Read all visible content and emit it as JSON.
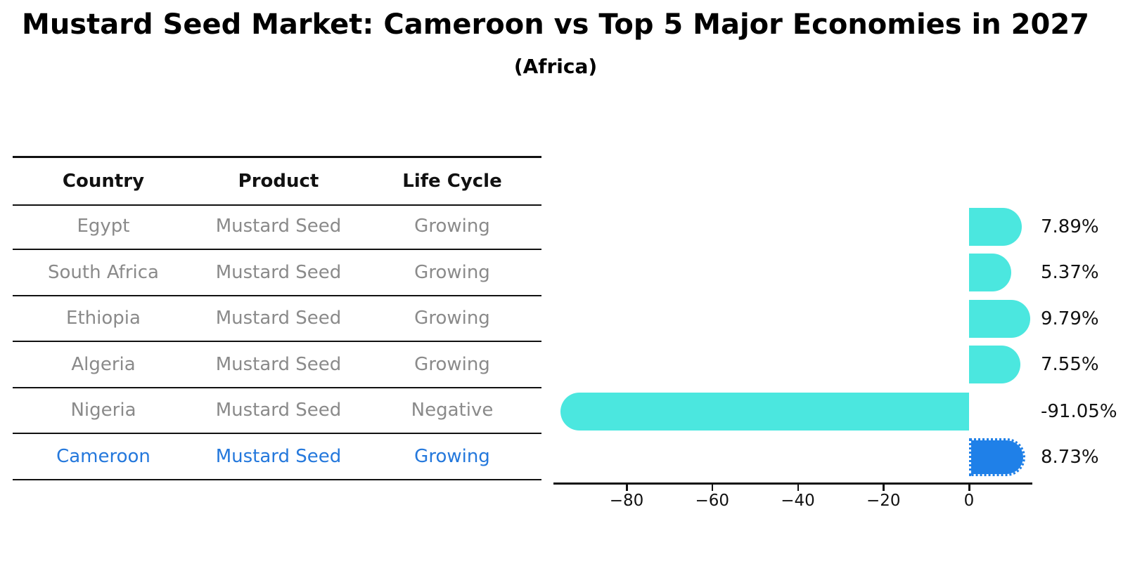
{
  "title": "Mustard Seed Market: Cameroon vs Top 5 Major Economies in 2027",
  "subtitle": "(Africa)",
  "table": {
    "headers": [
      "Country",
      "Product",
      "Life Cycle"
    ],
    "rows": [
      {
        "country": "Egypt",
        "product": "Mustard Seed",
        "life_cycle": "Growing",
        "highlight": false
      },
      {
        "country": "South Africa",
        "product": "Mustard Seed",
        "life_cycle": "Growing",
        "highlight": false
      },
      {
        "country": "Ethiopia",
        "product": "Mustard Seed",
        "life_cycle": "Growing",
        "highlight": false
      },
      {
        "country": "Algeria",
        "product": "Mustard Seed",
        "life_cycle": "Growing",
        "highlight": false
      },
      {
        "country": "Nigeria",
        "product": "Mustard Seed",
        "life_cycle": "Negative",
        "highlight": false
      },
      {
        "country": "Cameroon",
        "product": "Mustard Seed",
        "life_cycle": "Growing",
        "highlight": true
      }
    ]
  },
  "chart_data": {
    "type": "bar",
    "orientation": "horizontal",
    "categories": [
      "Egypt",
      "South Africa",
      "Ethiopia",
      "Algeria",
      "Nigeria",
      "Cameroon"
    ],
    "values": [
      7.89,
      5.37,
      9.79,
      7.55,
      -91.05,
      8.73
    ],
    "value_labels": [
      "7.89%",
      "5.37%",
      "9.79%",
      "7.55%",
      "-91.05%",
      "8.73%"
    ],
    "title": "Mustard Seed Market: Cameroon vs Top 5 Major Economies in 2027",
    "subtitle": "(Africa)",
    "xlabel": "",
    "ylabel": "",
    "xlim": [
      -97,
      15
    ],
    "x_ticks": [
      -80,
      -60,
      -40,
      -20,
      0
    ],
    "x_tick_labels": [
      "−80",
      "−60",
      "−40",
      "−20",
      "0"
    ],
    "grid": false,
    "legend_position": "none",
    "bar_color": "#4be7df",
    "highlight_color": "#1f80e8",
    "highlight_index": 5,
    "highlight_border_style": "dotted"
  },
  "colors": {
    "accent_blue": "#2478dc",
    "bar_cyan": "#4be7df",
    "bar_blue": "#1f80e8",
    "table_text_gray": "#8a8a8a",
    "text_black": "#111111"
  }
}
